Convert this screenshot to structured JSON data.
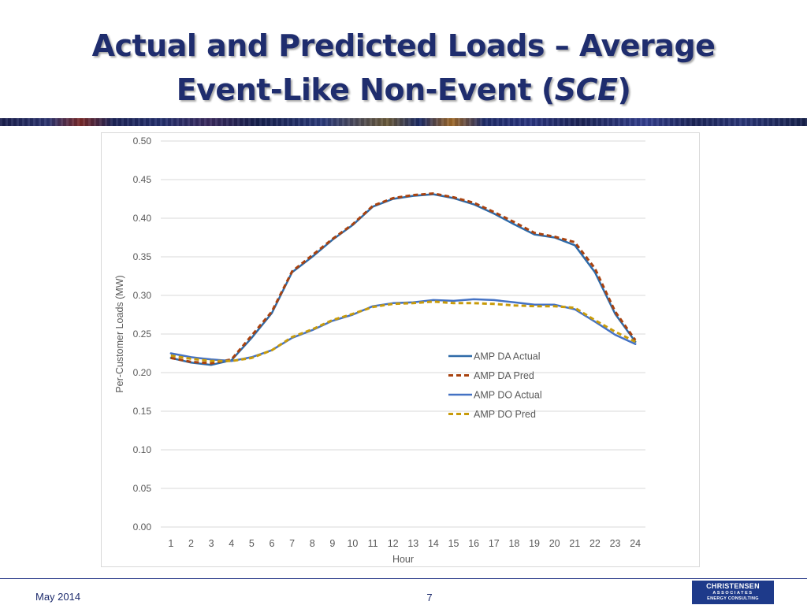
{
  "slide": {
    "title_line1": "Actual and Predicted Loads – Average",
    "title_line2_pre": "Event-Like Non-Event (",
    "title_line2_italic": "SCE",
    "title_line2_post": ")",
    "footer_date": "May 2014",
    "page_number": "7",
    "logo": {
      "line1": "CHRISTENSEN",
      "line2": "ASSOCIATES",
      "line3": "ENERGY CONSULTING"
    },
    "colors": {
      "title": "#1f2d6e",
      "logo_bg": "#1e3a8a"
    }
  },
  "chart_data": {
    "type": "line",
    "title": "",
    "xlabel": "Hour",
    "ylabel": "Per-Customer Loads (MW)",
    "ylim": [
      0,
      0.5
    ],
    "yticks": [
      "0.00",
      "0.05",
      "0.10",
      "0.15",
      "0.20",
      "0.25",
      "0.30",
      "0.35",
      "0.40",
      "0.45",
      "0.50"
    ],
    "categories": [
      "1",
      "2",
      "3",
      "4",
      "5",
      "6",
      "7",
      "8",
      "9",
      "10",
      "11",
      "12",
      "13",
      "14",
      "15",
      "16",
      "17",
      "18",
      "19",
      "20",
      "21",
      "22",
      "23",
      "24"
    ],
    "grid": "horizontal",
    "legend_position": "center-right",
    "series": [
      {
        "name": "AMP DA Actual",
        "color": "#2e6aa8",
        "dash": "solid",
        "values": [
          0.219,
          0.213,
          0.21,
          0.216,
          0.245,
          0.277,
          0.33,
          0.35,
          0.372,
          0.391,
          0.415,
          0.425,
          0.429,
          0.431,
          0.426,
          0.418,
          0.406,
          0.392,
          0.379,
          0.375,
          0.365,
          0.33,
          0.276,
          0.24
        ]
      },
      {
        "name": "AMP DA Pred",
        "color": "#a8420f",
        "dash": "dashed",
        "values": [
          0.219,
          0.214,
          0.212,
          0.217,
          0.248,
          0.279,
          0.331,
          0.352,
          0.373,
          0.392,
          0.416,
          0.426,
          0.43,
          0.432,
          0.427,
          0.42,
          0.408,
          0.395,
          0.381,
          0.376,
          0.369,
          0.335,
          0.279,
          0.242
        ]
      },
      {
        "name": "AMP DO Actual",
        "color": "#4472c4",
        "dash": "solid",
        "values": [
          0.225,
          0.22,
          0.217,
          0.215,
          0.22,
          0.229,
          0.245,
          0.255,
          0.267,
          0.275,
          0.286,
          0.29,
          0.291,
          0.294,
          0.293,
          0.295,
          0.294,
          0.291,
          0.288,
          0.288,
          0.282,
          0.266,
          0.249,
          0.237
        ]
      },
      {
        "name": "AMP DO Pred",
        "color": "#c89b0a",
        "dash": "dashed",
        "values": [
          0.222,
          0.218,
          0.215,
          0.215,
          0.219,
          0.229,
          0.246,
          0.256,
          0.268,
          0.276,
          0.285,
          0.289,
          0.29,
          0.292,
          0.29,
          0.29,
          0.289,
          0.287,
          0.286,
          0.286,
          0.284,
          0.268,
          0.253,
          0.24
        ]
      }
    ]
  }
}
